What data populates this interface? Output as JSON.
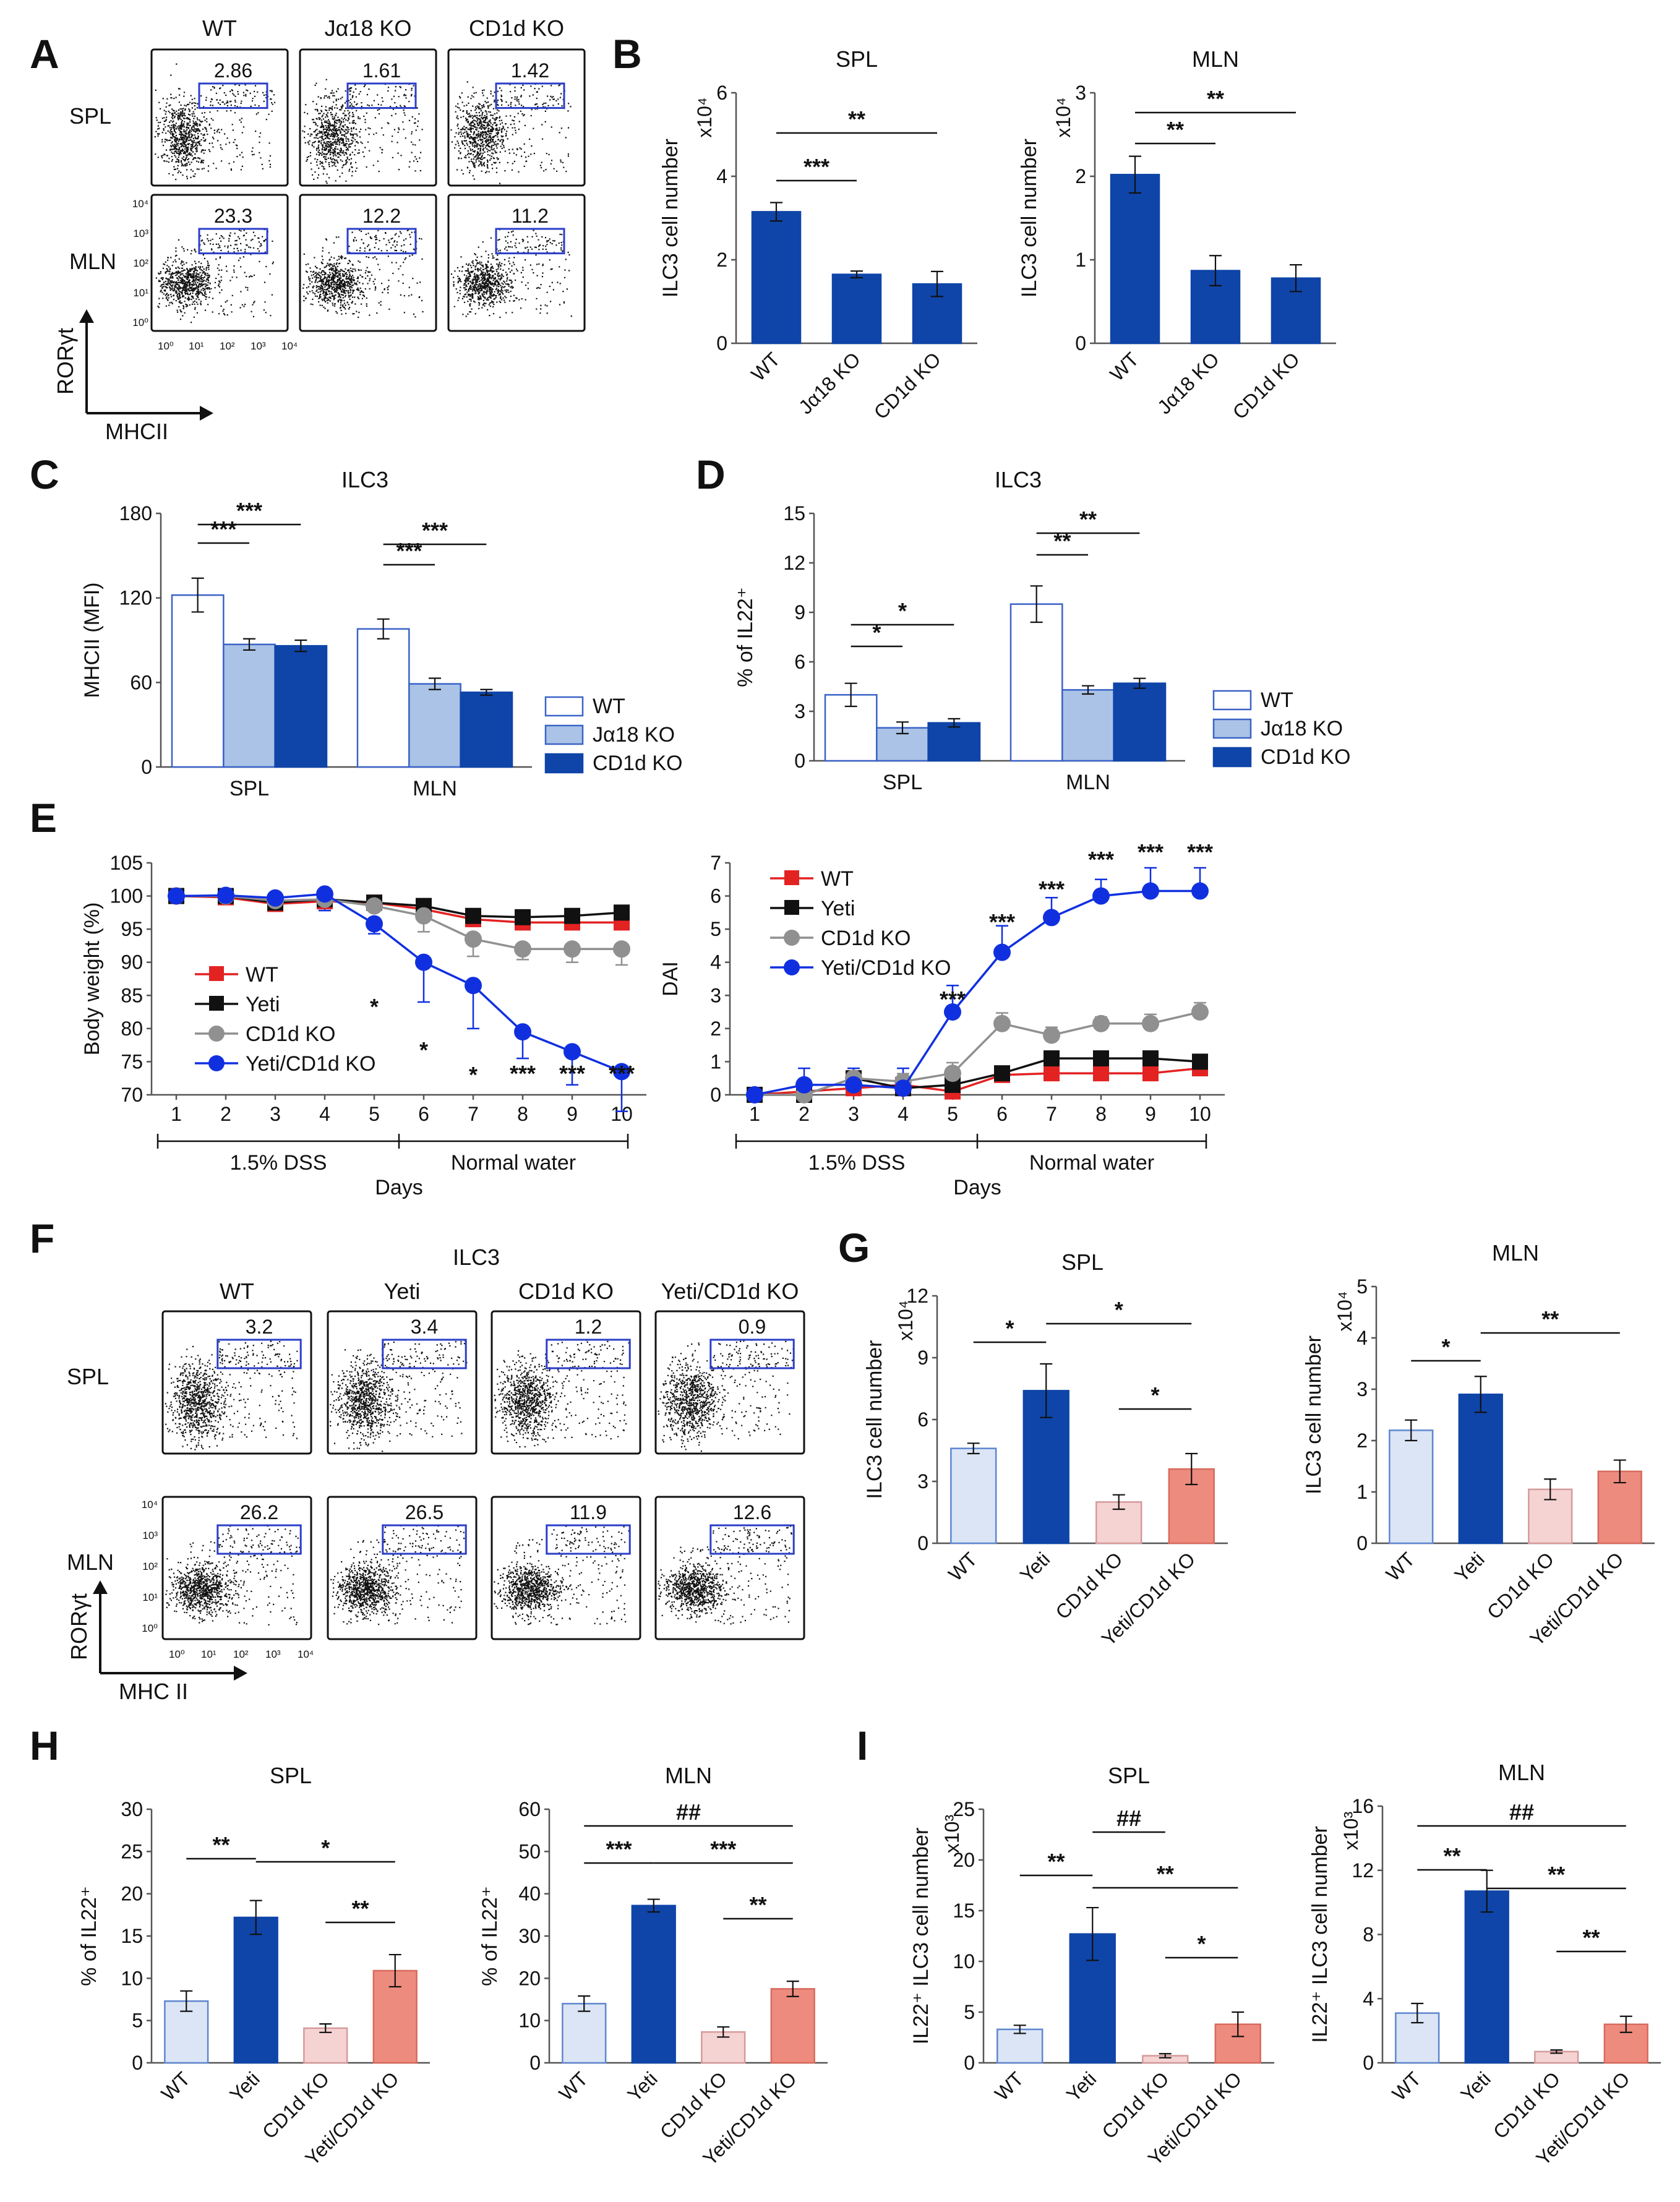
{
  "figure": {
    "letters": [
      "A",
      "B",
      "C",
      "D",
      "E",
      "F",
      "G",
      "H",
      "I"
    ],
    "colors": {
      "wt_bar": "#dbe5f5",
      "ja18_bar": "#aac3e6",
      "cd1d_bar": "#0f45a8",
      "yeti_bar": "#0f45a8",
      "cd1d_light": "#f6d3d3",
      "yeti_cd1d": "#ee8b7f",
      "gate": "#2b3ec8",
      "wt_line": "#e32222",
      "yeti_line": "#111111",
      "cd1d_line": "#909090",
      "yc_line": "#1030e0"
    }
  },
  "panel_A": {
    "columns": [
      "WT",
      "Jα18 KO",
      "CD1d KO"
    ],
    "rows": [
      "SPL",
      "MLN"
    ],
    "gate_values": [
      [
        "2.86",
        "1.61",
        "1.42"
      ],
      [
        "23.3",
        "12.2",
        "11.2"
      ]
    ],
    "y_axis": "RORγt",
    "x_axis": "MHCII",
    "y_ticks": [
      "10⁴",
      "10³",
      "10²",
      "10¹",
      "10⁰"
    ],
    "x_ticks": [
      "10⁰",
      "10¹",
      "10²",
      "10³",
      "10⁴"
    ]
  },
  "panel_F": {
    "title": "ILC3",
    "columns": [
      "WT",
      "Yeti",
      "CD1d KO",
      "Yeti/CD1d KO"
    ],
    "rows": [
      "SPL",
      "MLN"
    ],
    "gate_values": [
      [
        "3.2",
        "3.4",
        "1.2",
        "0.9"
      ],
      [
        "26.2",
        "26.5",
        "11.9",
        "12.6"
      ]
    ],
    "y_axis": "RORγt",
    "x_axis": "MHC II",
    "y_ticks": [
      "10⁴",
      "10³",
      "10²",
      "10¹",
      "10⁰"
    ],
    "x_ticks": [
      "10⁰",
      "10¹",
      "10²",
      "10³",
      "10⁴"
    ]
  },
  "chart_data": [
    {
      "id": "B_SPL",
      "type": "bar",
      "title": "SPL",
      "ylabel": "ILC3 cell number",
      "ylabel_unit": "x10⁴",
      "categories": [
        "WT",
        "Jα18 KO",
        "CD1d KO"
      ],
      "values": [
        3.15,
        1.65,
        1.42
      ],
      "errors": [
        0.22,
        0.08,
        0.3
      ],
      "ylim": [
        0,
        6
      ],
      "yticks": [
        0,
        2,
        4,
        6
      ],
      "sig": [
        [
          "***",
          0,
          1
        ],
        [
          "**",
          0,
          2
        ]
      ]
    },
    {
      "id": "B_MLN",
      "type": "bar",
      "title": "MLN",
      "ylabel": "ILC3 cell number",
      "ylabel_unit": "x10⁴",
      "categories": [
        "WT",
        "Jα18 KO",
        "CD1d KO"
      ],
      "values": [
        2.02,
        0.87,
        0.78
      ],
      "errors": [
        0.22,
        0.18,
        0.16
      ],
      "ylim": [
        0,
        3
      ],
      "yticks": [
        0,
        1,
        2,
        3
      ],
      "sig": [
        [
          "**",
          0,
          1
        ],
        [
          "**",
          0,
          2
        ]
      ]
    },
    {
      "id": "C",
      "type": "bar",
      "title": "ILC3",
      "ylabel": "MHCII (MFI)",
      "groups": [
        "SPL",
        "MLN"
      ],
      "series": [
        {
          "name": "WT",
          "values": [
            122,
            98
          ],
          "errors": [
            12,
            7
          ]
        },
        {
          "name": "Jα18 KO",
          "values": [
            87,
            59
          ],
          "errors": [
            4,
            4
          ]
        },
        {
          "name": "CD1d KO",
          "values": [
            86,
            53
          ],
          "errors": [
            4,
            2
          ]
        }
      ],
      "ylim": [
        0,
        180
      ],
      "yticks": [
        0,
        60,
        120,
        180
      ],
      "sig": [
        [
          "***",
          0,
          0,
          0,
          1
        ],
        [
          "***",
          0,
          0,
          0,
          2
        ],
        [
          "***",
          1,
          0,
          1,
          1
        ],
        [
          "***",
          1,
          0,
          1,
          2
        ]
      ]
    },
    {
      "id": "D",
      "type": "bar",
      "title": "ILC3",
      "ylabel": "% of IL22⁺",
      "groups": [
        "SPL",
        "MLN"
      ],
      "series": [
        {
          "name": "WT",
          "values": [
            4.0,
            9.5
          ],
          "errors": [
            0.7,
            1.1
          ]
        },
        {
          "name": "Jα18 KO",
          "values": [
            2.0,
            4.3
          ],
          "errors": [
            0.35,
            0.25
          ]
        },
        {
          "name": "CD1d KO",
          "values": [
            2.3,
            4.7
          ],
          "errors": [
            0.25,
            0.3
          ]
        }
      ],
      "ylim": [
        0,
        15
      ],
      "yticks": [
        0,
        3,
        6,
        9,
        12,
        15
      ],
      "sig": [
        [
          "*",
          0,
          0,
          0,
          1
        ],
        [
          "*",
          0,
          0,
          0,
          2
        ],
        [
          "**",
          1,
          0,
          1,
          1
        ],
        [
          "**",
          1,
          0,
          1,
          2
        ]
      ]
    },
    {
      "id": "E_weight",
      "type": "line",
      "ylabel": "Body weight (%)",
      "xlabel": "Days",
      "x": [
        1,
        2,
        3,
        4,
        5,
        6,
        7,
        8,
        9,
        10
      ],
      "ylim": [
        70,
        105
      ],
      "yticks": [
        70,
        75,
        80,
        85,
        90,
        95,
        100,
        105
      ],
      "phases": [
        "1.5% DSS",
        "Normal water"
      ],
      "series": [
        {
          "name": "WT",
          "values": [
            100,
            99.8,
            98.8,
            99.2,
            99,
            98,
            96.5,
            96,
            96,
            96
          ]
        },
        {
          "name": "Yeti",
          "values": [
            100,
            100,
            99,
            99.5,
            99,
            98.5,
            97,
            96.8,
            97,
            97.5
          ]
        },
        {
          "name": "CD1d KO",
          "values": [
            100,
            100,
            99.3,
            99.5,
            98.5,
            97,
            93.5,
            92,
            92,
            92
          ]
        },
        {
          "name": "Yeti/CD1d KO",
          "values": [
            100,
            100.1,
            99.7,
            100.3,
            95.8,
            90,
            86.5,
            79.5,
            76.5,
            73.5
          ]
        }
      ],
      "errors": [
        0.3,
        0.5,
        0.6,
        2.5,
        1.5,
        6,
        6.5,
        4,
        5,
        6
      ],
      "sig": [
        [
          "*",
          5
        ],
        [
          "*",
          6
        ],
        [
          "*",
          7
        ],
        [
          "***",
          8
        ],
        [
          "***",
          9
        ],
        [
          "***",
          10
        ]
      ]
    },
    {
      "id": "E_DAI",
      "type": "line",
      "ylabel": "DAI",
      "xlabel": "Days",
      "x": [
        1,
        2,
        3,
        4,
        5,
        6,
        7,
        8,
        9,
        10
      ],
      "ylim": [
        0,
        7
      ],
      "yticks": [
        0,
        1,
        2,
        3,
        4,
        5,
        6,
        7
      ],
      "phases": [
        "1.5% DSS",
        "Normal water"
      ],
      "series": [
        {
          "name": "WT",
          "values": [
            0,
            0.1,
            0.2,
            0.3,
            0.1,
            0.6,
            0.65,
            0.65,
            0.65,
            0.8
          ]
        },
        {
          "name": "Yeti",
          "values": [
            0,
            0,
            0.5,
            0.2,
            0.3,
            0.65,
            1.1,
            1.1,
            1.1,
            1.0
          ]
        },
        {
          "name": "CD1d KO",
          "values": [
            0,
            0,
            0.5,
            0.4,
            0.65,
            2.15,
            1.8,
            2.15,
            2.15,
            2.5
          ]
        },
        {
          "name": "Yeti/CD1d KO",
          "values": [
            0,
            0.3,
            0.3,
            0.2,
            2.5,
            4.3,
            5.35,
            6.0,
            6.15,
            6.15
          ]
        }
      ],
      "errors": [
        0,
        0.5,
        0.5,
        0.6,
        0.8,
        0.8,
        0.6,
        0.5,
        0.7,
        0.7
      ],
      "sig": [
        [
          "***",
          5
        ],
        [
          "***",
          6
        ],
        [
          "***",
          7
        ],
        [
          "***",
          8
        ],
        [
          "***",
          9
        ],
        [
          "***",
          10
        ]
      ]
    },
    {
      "id": "G_SPL",
      "type": "bar",
      "title": "SPL",
      "ylabel": "ILC3 cell number",
      "ylabel_unit": "x10⁴",
      "categories": [
        "WT",
        "Yeti",
        "CD1d KO",
        "Yeti/CD1d KO"
      ],
      "values": [
        4.6,
        7.4,
        2.0,
        3.6
      ],
      "errors": [
        0.25,
        1.3,
        0.35,
        0.75
      ],
      "ylim": [
        0,
        12
      ],
      "yticks": [
        0,
        3,
        6,
        9,
        12
      ],
      "sig": [
        [
          "*",
          0,
          1
        ],
        [
          "*",
          1,
          3
        ],
        [
          "*",
          2,
          3
        ]
      ]
    },
    {
      "id": "G_MLN",
      "type": "bar",
      "title": "MLN",
      "ylabel": "ILC3 cell number",
      "ylabel_unit": "x10⁴",
      "categories": [
        "WT",
        "Yeti",
        "CD1d KO",
        "Yeti/CD1d KO"
      ],
      "values": [
        2.2,
        2.9,
        1.05,
        1.4
      ],
      "errors": [
        0.2,
        0.35,
        0.2,
        0.22
      ],
      "ylim": [
        0,
        5
      ],
      "yticks": [
        0,
        1,
        2,
        3,
        4,
        5
      ],
      "sig": [
        [
          "*",
          0,
          1
        ],
        [
          "**",
          1,
          3
        ]
      ]
    },
    {
      "id": "H_SPL",
      "type": "bar",
      "title": "SPL",
      "ylabel": "% of IL22⁺",
      "categories": [
        "WT",
        "Yeti",
        "CD1d KO",
        "Yeti/CD1d KO"
      ],
      "values": [
        7.3,
        17.2,
        4.1,
        10.9
      ],
      "errors": [
        1.2,
        2.0,
        0.5,
        1.9
      ],
      "ylim": [
        0,
        30
      ],
      "yticks": [
        0,
        5,
        10,
        15,
        20,
        25,
        30
      ],
      "sig": [
        [
          "**",
          0,
          1
        ],
        [
          "*",
          1,
          3
        ],
        [
          "**",
          2,
          3
        ]
      ]
    },
    {
      "id": "H_MLN",
      "type": "bar",
      "title": "MLN",
      "ylabel": "% of IL22⁺",
      "categories": [
        "WT",
        "Yeti",
        "CD1d KO",
        "Yeti/CD1d KO"
      ],
      "values": [
        14,
        37.2,
        7.3,
        17.5
      ],
      "errors": [
        1.8,
        1.5,
        1.2,
        1.8
      ],
      "ylim": [
        0,
        60
      ],
      "yticks": [
        0,
        10,
        20,
        30,
        40,
        50,
        60
      ],
      "sig": [
        [
          "***",
          0,
          1
        ],
        [
          "***",
          1,
          3
        ],
        [
          "**",
          2,
          3
        ],
        [
          "##",
          0,
          3
        ]
      ]
    },
    {
      "id": "I_SPL",
      "type": "bar",
      "title": "SPL",
      "ylabel": "IL22⁺ ILC3 cell number",
      "ylabel_unit": "x10³",
      "categories": [
        "WT",
        "Yeti",
        "CD1d KO",
        "Yeti/CD1d KO"
      ],
      "values": [
        3.3,
        12.7,
        0.7,
        3.8
      ],
      "errors": [
        0.4,
        2.6,
        0.2,
        1.2
      ],
      "ylim": [
        0,
        25
      ],
      "yticks": [
        0,
        5,
        10,
        15,
        20,
        25
      ],
      "sig": [
        [
          "**",
          0,
          1
        ],
        [
          "**",
          1,
          3
        ],
        [
          "*",
          2,
          3
        ],
        [
          "##",
          1,
          2
        ]
      ]
    },
    {
      "id": "I_MLN",
      "type": "bar",
      "title": "MLN",
      "ylabel": "IL22⁺ ILC3 cell number",
      "ylabel_unit": "x10³",
      "categories": [
        "WT",
        "Yeti",
        "CD1d KO",
        "Yeti/CD1d KO"
      ],
      "values": [
        3.1,
        10.7,
        0.7,
        2.4
      ],
      "errors": [
        0.6,
        1.3,
        0.1,
        0.5
      ],
      "ylim": [
        0,
        16
      ],
      "yticks": [
        0,
        4,
        8,
        12,
        16
      ],
      "sig": [
        [
          "**",
          0,
          1
        ],
        [
          "**",
          1,
          3
        ],
        [
          "**",
          2,
          3
        ],
        [
          "##",
          0,
          3
        ]
      ]
    }
  ],
  "legends": {
    "C": [
      "WT",
      "Jα18 KO",
      "CD1d KO"
    ],
    "D": [
      "WT",
      "Jα18 KO",
      "CD1d KO"
    ]
  }
}
